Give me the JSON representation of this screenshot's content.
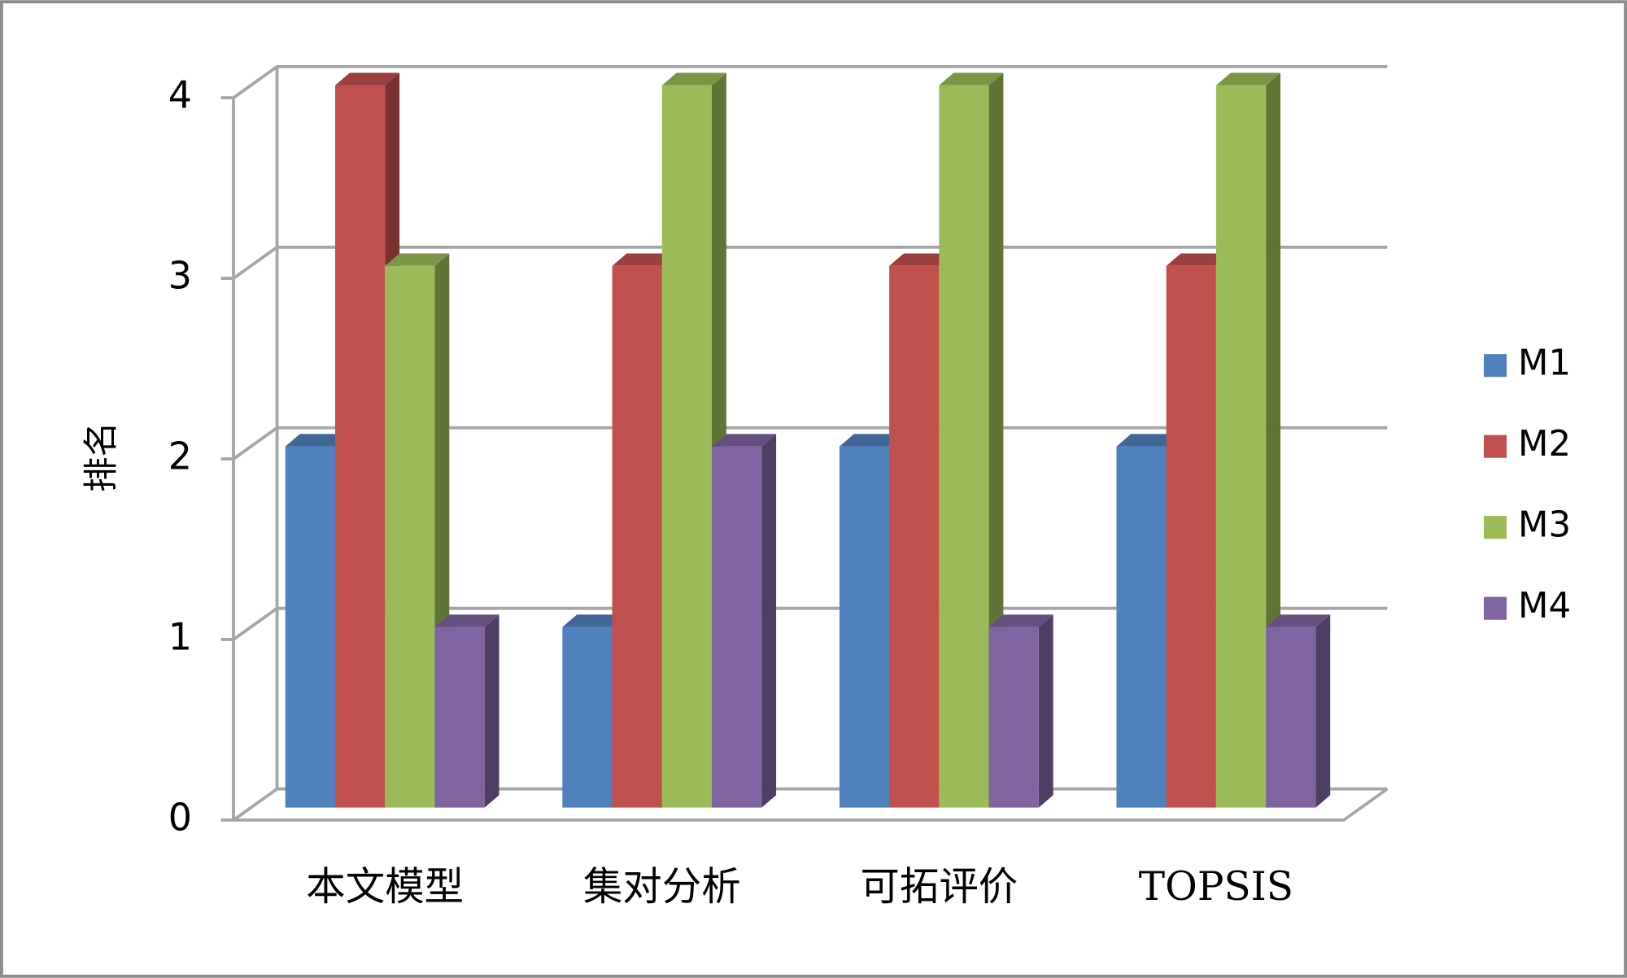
{
  "chart_data": {
    "type": "bar3d",
    "y_label": "排名",
    "categories": [
      "本文模型",
      "集对分析",
      "可拓评价",
      "TOPSIS"
    ],
    "series": [
      {
        "name": "M1",
        "color": "#4f81bd",
        "values": [
          2,
          1,
          2,
          2
        ]
      },
      {
        "name": "M2",
        "color": "#c0504d",
        "values": [
          4,
          3,
          3,
          3
        ]
      },
      {
        "name": "M3",
        "color": "#9bbb59",
        "values": [
          3,
          4,
          4,
          4
        ]
      },
      {
        "name": "M4",
        "color": "#8064a2",
        "values": [
          1,
          2,
          1,
          1
        ]
      }
    ],
    "ylim": [
      0,
      4
    ],
    "yticks": [
      0,
      1,
      2,
      3,
      4
    ],
    "grid": true,
    "legend": "right"
  }
}
